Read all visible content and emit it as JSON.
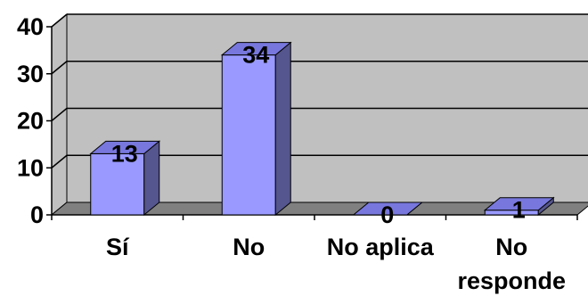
{
  "chart_data": {
    "type": "bar",
    "style": "3d-column",
    "title": "",
    "xlabel": "",
    "ylabel": "",
    "categories": [
      [
        "Sí"
      ],
      [
        "No"
      ],
      [
        "No aplica"
      ],
      [
        "No",
        "responde"
      ]
    ],
    "values": [
      13,
      34,
      0,
      1
    ],
    "data_labels": [
      "13",
      "34",
      "0",
      "1"
    ],
    "y_ticks": [
      "0",
      "10",
      "20",
      "30",
      "40"
    ],
    "ylim": [
      0,
      40
    ],
    "grid": true,
    "legend": "none",
    "colors": {
      "bar_front": "#9999ff",
      "bar_top": "#7777dd",
      "bar_side": "#55558f",
      "back_wall": "#c0c0c0",
      "floor": "#808080",
      "gridline": "#000000",
      "axis": "#000000"
    }
  }
}
